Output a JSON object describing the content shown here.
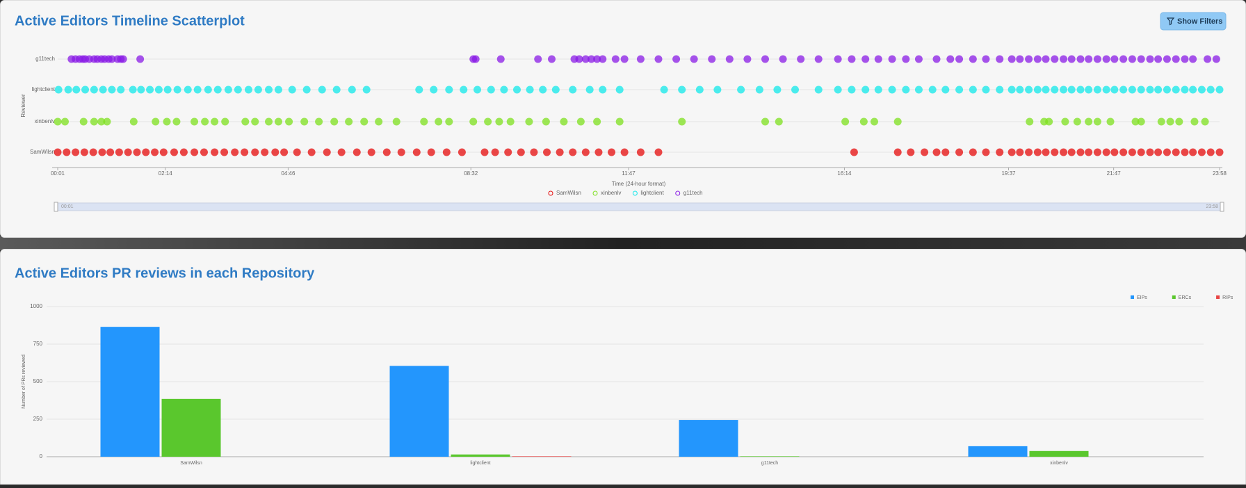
{
  "controls": {
    "filter_button": "Show Filters"
  },
  "chart_data": [
    {
      "type": "scatter",
      "title": "Active Editors Timeline Scatterplot",
      "x_label": "Time (24-hour format)",
      "y_label": "Reviewer",
      "categories": [
        "g11tech",
        "lightclient",
        "xinbenlv",
        "SamWilsn"
      ],
      "xlim": [
        1,
        1438
      ],
      "xticks": [
        {
          "value": 1,
          "label": "00:01"
        },
        {
          "value": 134,
          "label": "02:14"
        },
        {
          "value": 286,
          "label": "04:46"
        },
        {
          "value": 512,
          "label": "08:32"
        },
        {
          "value": 707,
          "label": "11:47"
        },
        {
          "value": 974,
          "label": "16:14"
        },
        {
          "value": 1177,
          "label": "19:37"
        },
        {
          "value": 1307,
          "label": "21:47"
        },
        {
          "value": 1438,
          "label": "23:58"
        }
      ],
      "grid": true,
      "series": [
        {
          "name": "SamWilsn",
          "color": "#e50b0b",
          "x": [
            1,
            12,
            23,
            34,
            45,
            56,
            66,
            77,
            88,
            99,
            110,
            121,
            132,
            145,
            157,
            170,
            182,
            195,
            207,
            220,
            232,
            245,
            257,
            270,
            281,
            297,
            315,
            334,
            352,
            371,
            389,
            408,
            426,
            445,
            463,
            482,
            501,
            529,
            542,
            558,
            574,
            590,
            606,
            622,
            638,
            654,
            670,
            686,
            702,
            722,
            744,
            986,
            1040,
            1056,
            1073,
            1088,
            1099,
            1116,
            1133,
            1149,
            1166,
            1181,
            1191,
            1202,
            1213,
            1223,
            1234,
            1245,
            1255,
            1266,
            1276,
            1287,
            1298,
            1308,
            1319,
            1330,
            1341,
            1352,
            1362,
            1373,
            1384,
            1395,
            1405,
            1416,
            1427,
            1438
          ]
        },
        {
          "name": "xinbenlv",
          "color": "#7ee01e",
          "x": [
            1,
            10,
            33,
            46,
            55,
            62,
            95,
            122,
            136,
            148,
            170,
            183,
            195,
            208,
            233,
            245,
            262,
            274,
            287,
            306,
            324,
            343,
            361,
            380,
            398,
            420,
            454,
            472,
            485,
            515,
            533,
            547,
            561,
            584,
            605,
            627,
            648,
            668,
            696,
            773,
            876,
            893,
            975,
            998,
            1011,
            1040,
            1203,
            1221,
            1227,
            1247,
            1262,
            1276,
            1287,
            1303,
            1334,
            1341,
            1366,
            1377,
            1388,
            1407,
            1420
          ]
        },
        {
          "name": "lightclient",
          "color": "#12e8ea",
          "x": [
            2,
            14,
            24,
            35,
            46,
            57,
            68,
            79,
            94,
            104,
            115,
            126,
            137,
            149,
            162,
            174,
            187,
            199,
            212,
            224,
            237,
            249,
            262,
            274,
            291,
            309,
            328,
            346,
            365,
            383,
            448,
            466,
            485,
            503,
            520,
            537,
            553,
            569,
            585,
            601,
            617,
            638,
            659,
            675,
            696,
            751,
            773,
            795,
            817,
            846,
            869,
            891,
            913,
            942,
            966,
            983,
            1000,
            1016,
            1033,
            1050,
            1066,
            1083,
            1099,
            1116,
            1133,
            1149,
            1166,
            1181,
            1191,
            1202,
            1213,
            1223,
            1234,
            1245,
            1255,
            1266,
            1276,
            1287,
            1298,
            1308,
            1319,
            1330,
            1341,
            1352,
            1362,
            1373,
            1384,
            1395,
            1405,
            1416,
            1427,
            1438
          ]
        },
        {
          "name": "g11tech",
          "color": "#8a1be6",
          "x": [
            18,
            23,
            28,
            32,
            35,
            40,
            46,
            50,
            55,
            59,
            64,
            68,
            75,
            79,
            82,
            103,
            515,
            518,
            549,
            595,
            612,
            640,
            646,
            654,
            661,
            668,
            675,
            691,
            702,
            722,
            744,
            766,
            788,
            810,
            832,
            854,
            876,
            898,
            920,
            942,
            966,
            983,
            1000,
            1016,
            1033,
            1050,
            1066,
            1088,
            1105,
            1116,
            1133,
            1149,
            1166,
            1181,
            1191,
            1202,
            1213,
            1223,
            1234,
            1245,
            1255,
            1266,
            1276,
            1287,
            1298,
            1308,
            1319,
            1330,
            1341,
            1352,
            1362,
            1373,
            1384,
            1395,
            1405,
            1423,
            1434
          ]
        }
      ]
    },
    {
      "type": "bar",
      "title": "Active Editors PR reviews in each Repository",
      "y_label": "Number of PRs reviewed",
      "categories": [
        "SamWilsn",
        "lightclient",
        "g11tech",
        "xinbenlv"
      ],
      "ylim": [
        0,
        1000
      ],
      "yticks": [
        0,
        250,
        500,
        750,
        1000
      ],
      "grid": true,
      "legend": "top-right",
      "series": [
        {
          "name": "EIPs",
          "color": "#2396fd",
          "values": [
            865,
            605,
            245,
            70
          ]
        },
        {
          "name": "ERCs",
          "color": "#5ac72d",
          "values": [
            385,
            15,
            3,
            38
          ]
        },
        {
          "name": "RIPs",
          "color": "#e84545",
          "values": [
            0,
            3,
            0,
            0
          ]
        }
      ]
    }
  ]
}
